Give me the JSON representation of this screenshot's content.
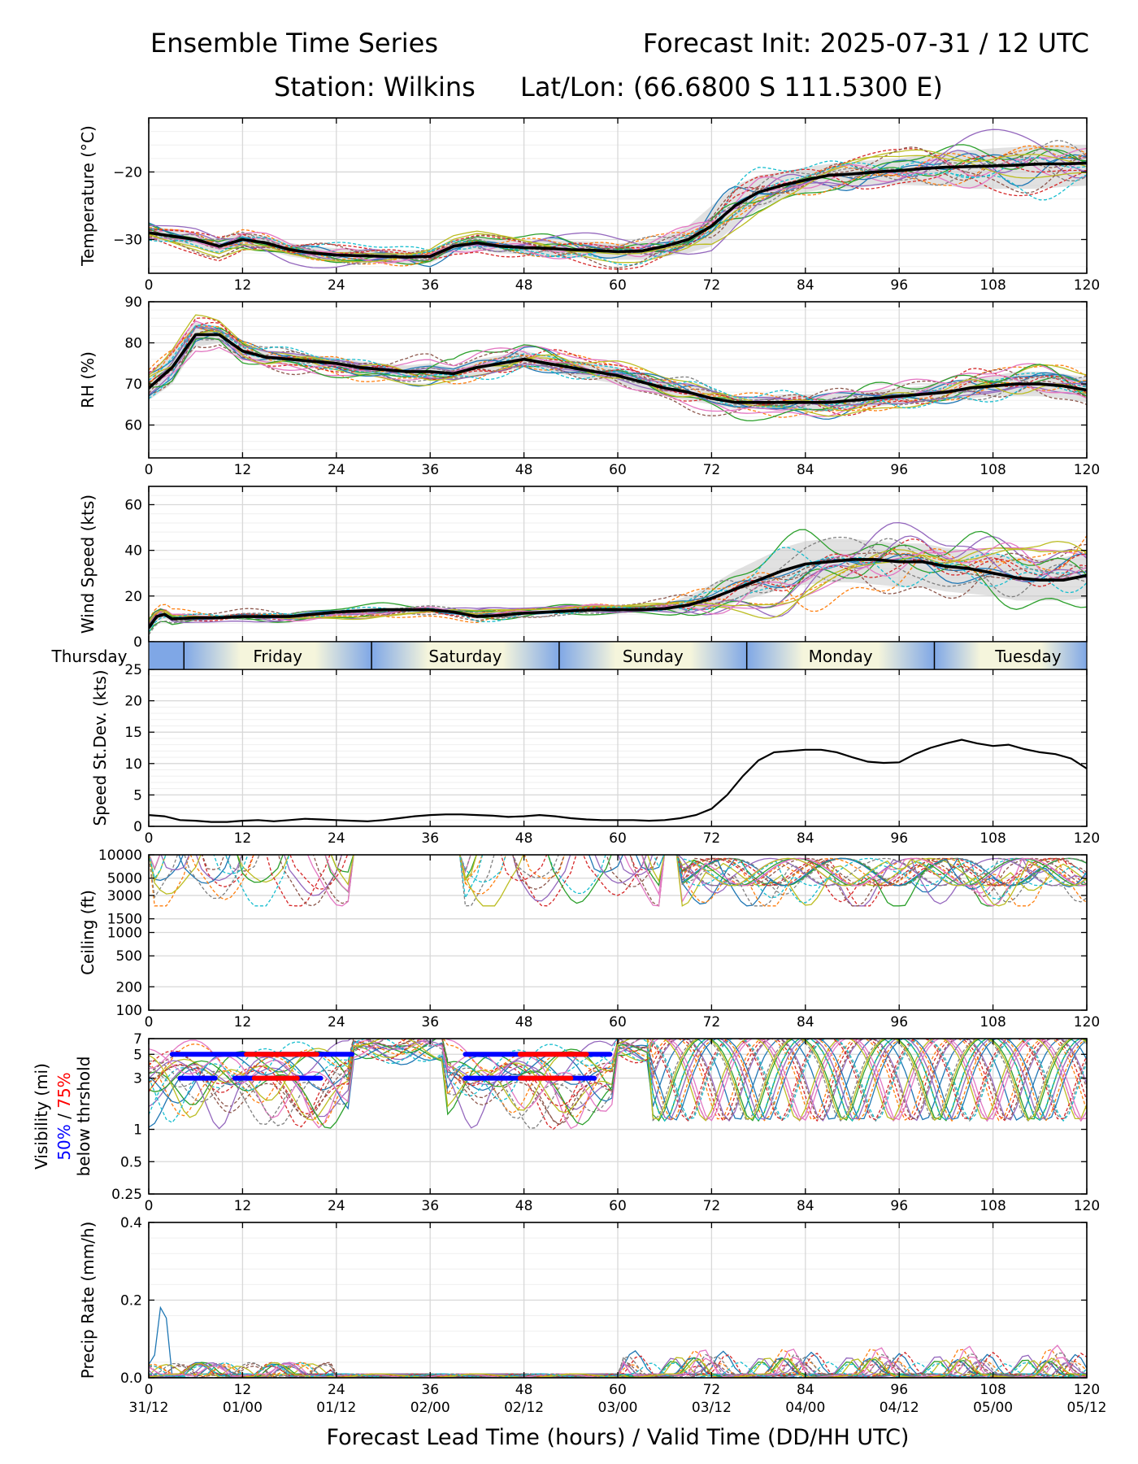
{
  "header": {
    "title_left": "Ensemble Time Series",
    "title_right": "Forecast Init: 2025-07-31 / 12 UTC",
    "station": "Station: Wilkins",
    "latlon": "Lat/Lon: (66.6800 S 111.5300 E)"
  },
  "x_axis": {
    "range": [
      0,
      120
    ],
    "ticks": [
      0,
      12,
      24,
      36,
      48,
      60,
      72,
      84,
      96,
      108,
      120
    ],
    "tick_labels": [
      "0",
      "12",
      "24",
      "36",
      "48",
      "60",
      "72",
      "84",
      "96",
      "108",
      "120"
    ],
    "valid_time_labels": [
      "31/12",
      "01/00",
      "01/12",
      "02/00",
      "02/12",
      "03/00",
      "03/12",
      "04/00",
      "04/12",
      "05/00",
      "05/12"
    ],
    "label": "Forecast Lead Time (hours) / Valid Time (DD/HH UTC)"
  },
  "day_band": {
    "boundaries": [
      4.5,
      28.5,
      52.5,
      76.5,
      100.5
    ],
    "days": [
      {
        "label": "Thursday",
        "hour": -1
      },
      {
        "label": "Friday",
        "hour": 16.5
      },
      {
        "label": "Saturday",
        "hour": 40.5
      },
      {
        "label": "Sunday",
        "hour": 64.5
      },
      {
        "label": "Monday",
        "hour": 88.5
      },
      {
        "label": "Tuesday",
        "hour": 112.5
      }
    ],
    "colors": {
      "night": "#7fa7e6",
      "day": "#f5f5dc"
    }
  },
  "chart_data": [
    {
      "type": "line",
      "ylabel": "Temperature (°C)",
      "ylim": [
        -35,
        -12
      ],
      "yticks": [
        -30,
        -20
      ],
      "yticklabels": [
        "−30",
        "−20"
      ],
      "mean": {
        "x": [
          0,
          3,
          6,
          9,
          12,
          15,
          18,
          21,
          24,
          27,
          30,
          33,
          36,
          39,
          42,
          45,
          48,
          51,
          54,
          57,
          60,
          63,
          66,
          69,
          72,
          75,
          78,
          81,
          84,
          87,
          90,
          93,
          96,
          99,
          102,
          105,
          108,
          111,
          114,
          117,
          120
        ],
        "y": [
          -29,
          -29.5,
          -30,
          -31,
          -30,
          -30.5,
          -31.5,
          -32,
          -32.3,
          -32.4,
          -32.5,
          -32.6,
          -32.5,
          -31,
          -30.5,
          -31,
          -31.2,
          -31.3,
          -31.5,
          -31.6,
          -31.8,
          -31.7,
          -31,
          -30,
          -28,
          -25,
          -23,
          -22,
          -21.2,
          -20.5,
          -20.3,
          -20,
          -19.8,
          -19.5,
          -19.3,
          -19.2,
          -19.1,
          -19,
          -18.8,
          -18.8,
          -18.7
        ]
      },
      "spread": {
        "lo": [
          -30,
          -30.5,
          -31,
          -32,
          -31,
          -31.5,
          -32.5,
          -33,
          -33.3,
          -33.4,
          -33.5,
          -33.6,
          -33.5,
          -32,
          -31.5,
          -32,
          -32.2,
          -32.5,
          -32.7,
          -32.8,
          -33,
          -33,
          -32.5,
          -32,
          -31,
          -28,
          -25.5,
          -24,
          -23,
          -22.5,
          -22.5,
          -22,
          -21.8,
          -22,
          -22,
          -22.5,
          -22.5,
          -22.5,
          -22.5,
          -22.2,
          -22
        ],
        "hi": [
          -28,
          -28.5,
          -29,
          -30,
          -29,
          -29.5,
          -30.5,
          -31,
          -31.3,
          -31.4,
          -31.5,
          -31.6,
          -31.5,
          -30,
          -29.5,
          -30,
          -30.2,
          -30.1,
          -30.2,
          -30.3,
          -30.6,
          -30.3,
          -29.5,
          -28,
          -25,
          -22,
          -20.5,
          -20,
          -19.3,
          -18.8,
          -18.5,
          -18.2,
          -18,
          -17.5,
          -17,
          -16.8,
          -16.5,
          -16.3,
          -16,
          -16,
          -16
        ]
      },
      "members": 20,
      "member_spread": 2.2,
      "member_seed": 11
    },
    {
      "type": "line",
      "ylabel": "RH (%)",
      "ylim": [
        52,
        90
      ],
      "yticks": [
        60,
        70,
        80,
        90
      ],
      "yticklabels": [
        "60",
        "70",
        "80",
        "90"
      ],
      "mean": {
        "x": [
          0,
          3,
          6,
          9,
          12,
          15,
          18,
          21,
          24,
          27,
          30,
          33,
          36,
          39,
          42,
          45,
          48,
          51,
          54,
          57,
          60,
          63,
          66,
          69,
          72,
          75,
          78,
          81,
          84,
          87,
          90,
          93,
          96,
          99,
          102,
          105,
          108,
          111,
          114,
          117,
          120
        ],
        "y": [
          69,
          74,
          82,
          82,
          78,
          76.5,
          76,
          75.5,
          75,
          74,
          73.5,
          73,
          73,
          72.5,
          74,
          75,
          76,
          75,
          74,
          73,
          72,
          70.5,
          69,
          68,
          66.5,
          65.5,
          65.5,
          65.5,
          65.5,
          65.5,
          66,
          66.5,
          67,
          67.5,
          68,
          69,
          69.5,
          70,
          70,
          69.5,
          68.5
        ]
      },
      "spread": {
        "lo": [
          66,
          70,
          79,
          80,
          76,
          75,
          74.5,
          74,
          73.5,
          72.5,
          72,
          71.5,
          71,
          71,
          72,
          73,
          74,
          73,
          72,
          71,
          70,
          68.5,
          67,
          66,
          65,
          64,
          64,
          63.5,
          63.5,
          63.5,
          64,
          64.5,
          65,
          65.5,
          66,
          66.5,
          67,
          67,
          67,
          66.5,
          65.5
        ],
        "hi": [
          72,
          78,
          85,
          84,
          80,
          78,
          77.5,
          77,
          76.5,
          75.5,
          75,
          74.5,
          75,
          74,
          76,
          77,
          78,
          77,
          76,
          75,
          74,
          72.5,
          71,
          70,
          68,
          67,
          67,
          67.5,
          67.5,
          67.5,
          68,
          68.5,
          69,
          69.5,
          70.5,
          71.5,
          72,
          73,
          73,
          72.5,
          71.5
        ]
      },
      "members": 20,
      "member_spread": 3,
      "member_seed": 23
    },
    {
      "type": "line",
      "ylabel": "Wind Speed (kts)",
      "ylim": [
        0,
        68
      ],
      "yticks": [
        0,
        20,
        40,
        60
      ],
      "yticklabels": [
        "0",
        "20",
        "40",
        "60"
      ],
      "mean": {
        "x": [
          0,
          1,
          2,
          3,
          6,
          9,
          12,
          15,
          18,
          21,
          24,
          27,
          30,
          33,
          36,
          39,
          42,
          45,
          48,
          51,
          54,
          57,
          60,
          63,
          66,
          69,
          72,
          75,
          78,
          81,
          84,
          87,
          90,
          93,
          96,
          99,
          102,
          105,
          108,
          111,
          114,
          117,
          120
        ],
        "y": [
          6,
          11,
          12,
          10,
          10.5,
          10.5,
          11,
          11,
          11,
          12,
          13,
          13.5,
          14,
          14,
          14,
          13,
          11,
          11.5,
          12.5,
          13,
          13.5,
          14,
          14,
          14,
          14.5,
          16,
          19,
          23,
          27,
          31,
          34,
          35,
          36,
          36,
          35,
          35,
          33,
          32,
          30,
          28,
          27,
          27,
          29
        ]
      },
      "spread": {
        "lo": [
          4,
          9,
          10,
          9,
          9.5,
          9.5,
          10,
          10,
          10,
          11,
          12,
          12.5,
          13,
          13,
          13,
          12,
          10,
          10.5,
          11.5,
          12,
          12.5,
          13,
          13,
          13,
          13,
          13.5,
          14.5,
          17,
          20,
          23,
          25,
          26,
          26,
          25,
          24,
          24,
          22,
          21,
          20,
          18,
          18,
          18,
          19
        ]
      },
      "spread_hi": [
        8,
        13,
        14,
        12,
        11.5,
        11.5,
        12,
        12,
        12,
        13,
        14,
        14.5,
        15,
        15,
        15.5,
        14.5,
        12.5,
        13,
        13.5,
        14,
        14.5,
        15,
        15,
        15.5,
        16.5,
        20,
        25,
        31,
        36,
        41,
        44,
        45,
        45,
        44,
        43,
        43,
        41,
        40,
        39,
        37,
        36,
        37,
        39
      ],
      "members": 20,
      "member_spread": 4,
      "member_seed": 37
    },
    {
      "type": "line",
      "ylabel": "Speed St.Dev. (kts)",
      "ylim": [
        0,
        25
      ],
      "yticks": [
        0,
        5,
        10,
        15,
        20,
        25
      ],
      "yticklabels": [
        "0",
        "5",
        "10",
        "15",
        "20",
        "25"
      ],
      "x": [
        0,
        2,
        4,
        6,
        8,
        10,
        12,
        14,
        16,
        18,
        20,
        22,
        24,
        26,
        28,
        30,
        32,
        34,
        36,
        38,
        40,
        42,
        44,
        46,
        48,
        50,
        52,
        54,
        56,
        58,
        60,
        62,
        64,
        66,
        68,
        70,
        72,
        74,
        76,
        78,
        80,
        82,
        84,
        86,
        88,
        90,
        92,
        94,
        96,
        98,
        100,
        102,
        104,
        106,
        108,
        110,
        112,
        114,
        116,
        118,
        120
      ],
      "y": [
        1.8,
        1.6,
        1,
        0.9,
        0.7,
        0.7,
        0.9,
        1,
        0.8,
        1,
        1.2,
        1.1,
        1,
        0.9,
        0.8,
        1,
        1.3,
        1.6,
        1.8,
        1.9,
        1.9,
        1.8,
        1.7,
        1.5,
        1.6,
        1.8,
        1.6,
        1.3,
        1.1,
        1.0,
        1.0,
        1.0,
        0.9,
        1.0,
        1.3,
        1.8,
        2.8,
        5,
        8,
        10.5,
        11.8,
        12,
        12.2,
        12.2,
        11.8,
        11,
        10.3,
        10.1,
        10.2,
        11.5,
        12.5,
        13.2,
        13.8,
        13.2,
        12.8,
        13,
        12.3,
        11.8,
        11.5,
        10.8,
        9.2
      ]
    },
    {
      "type": "line",
      "ylabel": "Ceiling (ft)",
      "scale": "log",
      "ylim": [
        100,
        10000
      ],
      "yticks": [
        100,
        200,
        500,
        1000,
        1500,
        3000,
        5000,
        10000
      ],
      "yticklabels": [
        "100",
        "200",
        "500",
        "1000",
        "1500",
        "3000",
        "5000",
        "10000"
      ],
      "members": 20,
      "member_seed": 53
    },
    {
      "type": "line",
      "ylabel_lines": [
        "Visibility (mi)",
        "50% / 75%",
        "below thrshold"
      ],
      "ylabel_parts": {
        "p50": "50%",
        "slash": " / ",
        "p75": "75%"
      },
      "scale": "log",
      "ylim": [
        0.25,
        7
      ],
      "yticks": [
        0.25,
        0.5,
        1,
        3,
        5,
        7
      ],
      "yticklabels": [
        "0.25",
        "0.5",
        "1",
        "3",
        "5",
        "7"
      ],
      "threshold_bars": [
        {
          "level": 5,
          "color": "blue",
          "x0": 3,
          "x1": 26
        },
        {
          "level": 5,
          "color": "red",
          "x0": 12.5,
          "x1": 21.5
        },
        {
          "level": 3,
          "color": "blue",
          "x0": 4,
          "x1": 8.5
        },
        {
          "level": 3,
          "color": "blue",
          "x0": 11,
          "x1": 22
        },
        {
          "level": 3,
          "color": "red",
          "x0": 13.5,
          "x1": 19
        },
        {
          "level": 5,
          "color": "blue",
          "x0": 40.5,
          "x1": 59
        },
        {
          "level": 5,
          "color": "red",
          "x0": 47.5,
          "x1": 56
        },
        {
          "level": 3,
          "color": "blue",
          "x0": 40.5,
          "x1": 57
        },
        {
          "level": 3,
          "color": "red",
          "x0": 47.5,
          "x1": 54
        }
      ],
      "members": 20,
      "member_seed": 71
    },
    {
      "type": "line",
      "ylabel": "Precip Rate (mm/h)",
      "ylim": [
        0,
        0.4
      ],
      "yticks": [
        0,
        0.2,
        0.4
      ],
      "yticklabels": [
        "0.0",
        "0.2",
        "0.4"
      ],
      "members": 20,
      "member_seed": 89
    }
  ],
  "member_colors": [
    "#1f77b4",
    "#ff7f0e",
    "#2ca02c",
    "#d62728",
    "#9467bd",
    "#8c564b",
    "#e377c2",
    "#7f7f7f",
    "#bcbd22",
    "#17becf"
  ]
}
